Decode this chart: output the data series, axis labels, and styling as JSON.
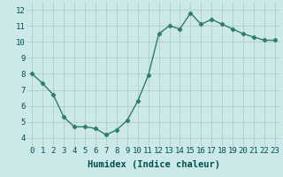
{
  "x": [
    0,
    1,
    2,
    3,
    4,
    5,
    6,
    7,
    8,
    9,
    10,
    11,
    12,
    13,
    14,
    15,
    16,
    17,
    18,
    19,
    20,
    21,
    22,
    23
  ],
  "y": [
    8.0,
    7.4,
    6.7,
    5.3,
    4.7,
    4.7,
    4.6,
    4.2,
    4.5,
    5.1,
    6.3,
    7.9,
    10.5,
    11.0,
    10.8,
    11.8,
    11.1,
    11.4,
    11.1,
    10.8,
    10.5,
    10.3,
    10.1,
    10.1
  ],
  "xlabel": "Humidex (Indice chaleur)",
  "ylabel": "",
  "xlim": [
    -0.5,
    23.5
  ],
  "ylim": [
    3.5,
    12.5
  ],
  "yticks": [
    4,
    5,
    6,
    7,
    8,
    9,
    10,
    11,
    12
  ],
  "xticks": [
    0,
    1,
    2,
    3,
    4,
    5,
    6,
    7,
    8,
    9,
    10,
    11,
    12,
    13,
    14,
    15,
    16,
    17,
    18,
    19,
    20,
    21,
    22,
    23
  ],
  "line_color": "#2e7d6e",
  "marker": "D",
  "marker_size": 2.2,
  "line_width": 1.0,
  "bg_color": "#cce8e8",
  "grid_color": "#b0cccc",
  "axis_bg": "#cce8e8",
  "xlabel_color": "#005050",
  "tick_color": "#005050",
  "font_family": "monospace",
  "xlabel_fontsize": 7.5,
  "tick_fontsize": 6.5
}
